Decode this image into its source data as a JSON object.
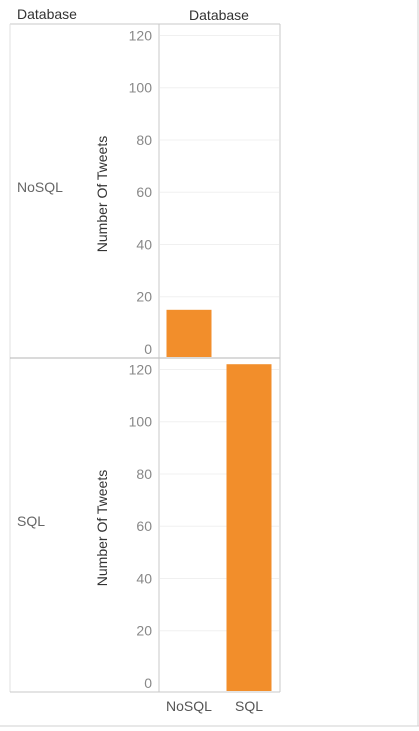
{
  "chart_data": {
    "type": "bar",
    "row_header": "Database",
    "column_header": "Database",
    "ylabel": "Number Of Tweets",
    "categories": [
      "NoSQL",
      "SQL"
    ],
    "ylim": [
      0,
      125
    ],
    "yticks": [
      0,
      20,
      40,
      60,
      80,
      100,
      120
    ],
    "grid": true,
    "bar_color": "#f28e2b",
    "panels": [
      {
        "row_label": "NoSQL",
        "values": [
          15,
          null
        ]
      },
      {
        "row_label": "SQL",
        "values": [
          null,
          122
        ]
      }
    ]
  },
  "colors": {
    "bar": "#f28e2b",
    "axis_line": "#c8c8c8",
    "grid_line": "#f0f0f0",
    "tick_text": "#888888",
    "label_text": "#333333"
  }
}
